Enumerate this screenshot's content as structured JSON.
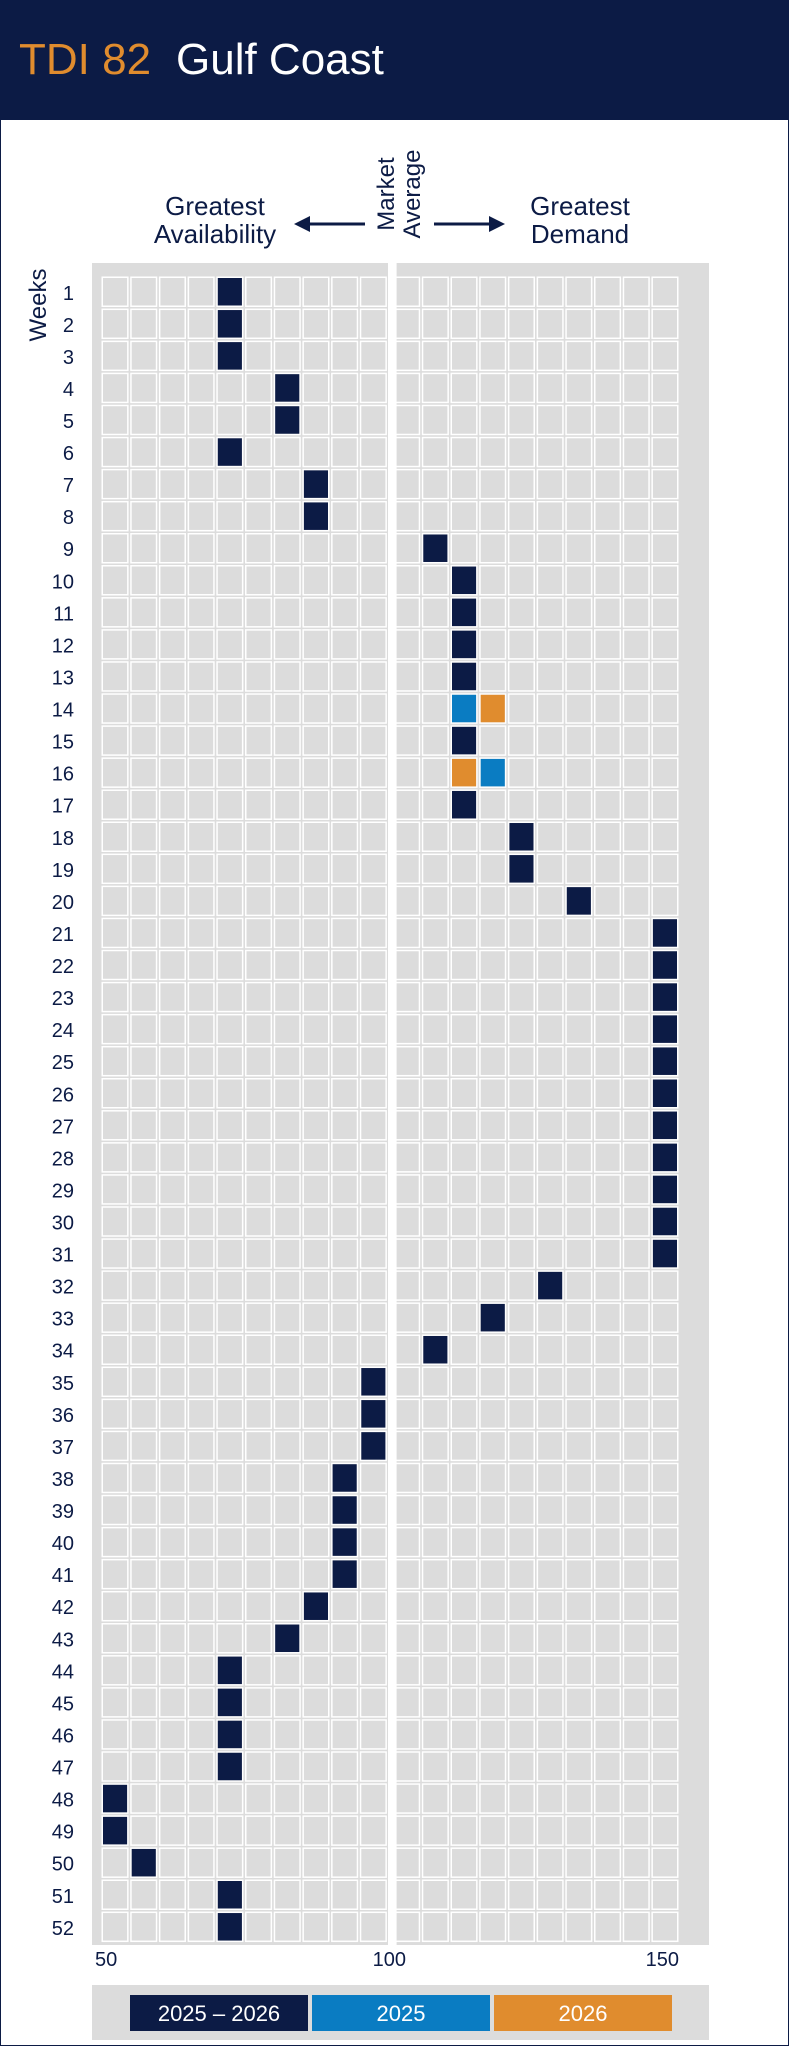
{
  "header": {
    "code": "TDI 82",
    "region": "Gulf Coast"
  },
  "direction_labels": {
    "left_line1": "Greatest",
    "left_line2": "Availability",
    "middle_line1": "Market",
    "middle_line2": "Average",
    "right_line1": "Greatest",
    "right_line2": "Demand"
  },
  "colors": {
    "series_2025_2026": "#0c1b45",
    "series_2025": "#0a7cc2",
    "series_2026": "#e08c2e",
    "cell_bg": "#dcdcdc",
    "panel_bg": "#dcdcdc"
  },
  "chart_data": {
    "type": "heatmap",
    "ylabel": "Weeks",
    "xlim": [
      50,
      150
    ],
    "x_ticks": [
      "50",
      "100",
      "150"
    ],
    "weeks": [
      "1",
      "2",
      "3",
      "4",
      "5",
      "6",
      "7",
      "8",
      "9",
      "10",
      "11",
      "12",
      "13",
      "14",
      "15",
      "16",
      "17",
      "18",
      "19",
      "20",
      "21",
      "22",
      "23",
      "24",
      "25",
      "26",
      "27",
      "28",
      "29",
      "30",
      "31",
      "32",
      "33",
      "34",
      "35",
      "36",
      "37",
      "38",
      "39",
      "40",
      "41",
      "42",
      "43",
      "44",
      "45",
      "46",
      "47",
      "48",
      "49",
      "50",
      "51",
      "52"
    ],
    "legend": [
      "2025 – 2026",
      "2025",
      "2026"
    ],
    "series": [
      {
        "name": "2025 – 2026",
        "values": [
          75,
          75,
          75,
          85,
          85,
          75,
          90,
          90,
          110,
          115,
          115,
          115,
          115,
          null,
          115,
          null,
          115,
          125,
          125,
          135,
          150,
          150,
          150,
          150,
          150,
          150,
          150,
          150,
          150,
          150,
          150,
          130,
          120,
          110,
          100,
          100,
          100,
          95,
          95,
          95,
          95,
          90,
          85,
          75,
          75,
          75,
          75,
          55,
          55,
          60,
          75,
          75
        ]
      },
      {
        "name": "2025",
        "values": [
          null,
          null,
          null,
          null,
          null,
          null,
          null,
          null,
          null,
          null,
          null,
          null,
          null,
          115,
          null,
          120,
          null,
          null,
          null,
          null,
          null,
          null,
          null,
          null,
          null,
          null,
          null,
          null,
          null,
          null,
          null,
          null,
          null,
          null,
          null,
          null,
          null,
          null,
          null,
          null,
          null,
          null,
          null,
          null,
          null,
          null,
          null,
          null,
          null,
          null,
          null,
          null
        ]
      },
      {
        "name": "2026",
        "values": [
          null,
          null,
          null,
          null,
          null,
          null,
          null,
          null,
          null,
          null,
          null,
          null,
          null,
          120,
          null,
          115,
          null,
          null,
          null,
          null,
          null,
          null,
          null,
          null,
          null,
          null,
          null,
          null,
          null,
          null,
          null,
          null,
          null,
          null,
          null,
          null,
          null,
          null,
          null,
          null,
          null,
          null,
          null,
          null,
          null,
          null,
          null,
          null,
          null,
          null,
          null,
          null
        ]
      }
    ]
  }
}
